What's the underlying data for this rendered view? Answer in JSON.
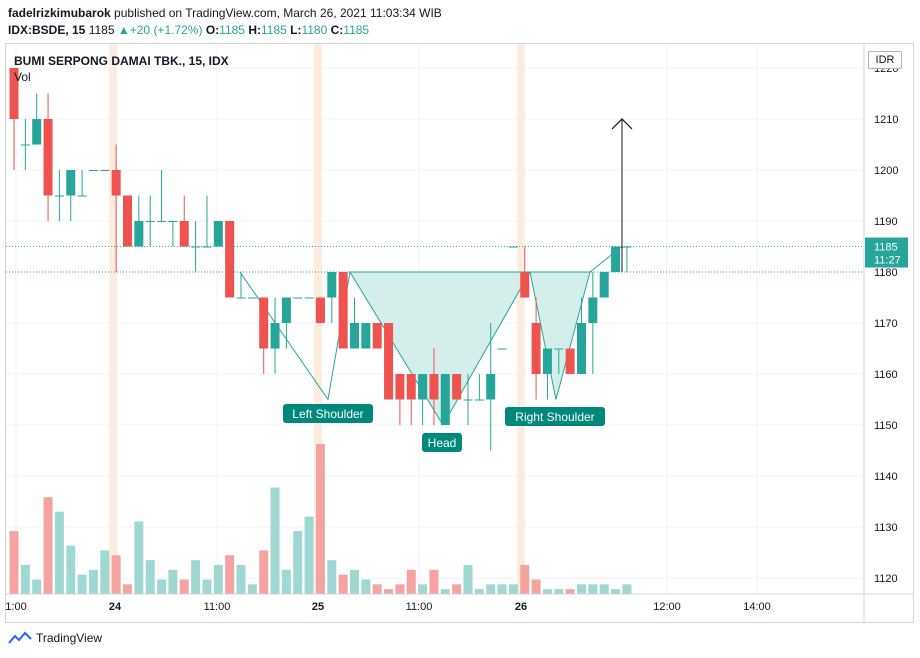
{
  "header": {
    "author": "fadelrizkimubarok",
    "published": "published on TradingView.com, March 26, 2021 11:03:34 WIB",
    "symbol": "IDX:BSDE, 15",
    "last": "1185",
    "change": "+20 (+1.72%)",
    "o_label": "O:",
    "o_value": "1185",
    "h_label": "H:",
    "h_value": "1185",
    "l_label": "L:",
    "l_value": "1180",
    "c_label": "C:",
    "c_value": "1185"
  },
  "chart_title": "BUMI SERPONG DAMAI TBK., 15, IDX",
  "vol_label": "Vol",
  "currency": "IDR",
  "price_badge": {
    "price": "1185",
    "countdown": "11:27"
  },
  "footer_brand": "TradingView",
  "colors": {
    "up": "#26a69a",
    "down": "#ef5350",
    "up_vol": "#9fd8d2",
    "down_vol": "#f5a3a1",
    "pattern_fill": "#cdebe7",
    "session": "#fde9d8"
  },
  "chart_data": {
    "type": "candlestick",
    "y_ticks": [
      1120,
      1130,
      1140,
      1150,
      1160,
      1170,
      1180,
      1190,
      1200,
      1210,
      1220
    ],
    "x_ticks": [
      "1:00",
      "24",
      "11:00",
      "25",
      "11:00",
      "26",
      "12:00",
      "14:00"
    ],
    "price_lines": [
      1185,
      1180
    ],
    "candles": [
      {
        "o": 1220,
        "h": 1220,
        "l": 1200,
        "c": 1210
      },
      {
        "o": 1205,
        "h": 1210,
        "l": 1200,
        "c": 1205
      },
      {
        "o": 1205,
        "h": 1215,
        "l": 1205,
        "c": 1210
      },
      {
        "o": 1210,
        "h": 1215,
        "l": 1190,
        "c": 1195
      },
      {
        "o": 1195,
        "h": 1200,
        "l": 1190,
        "c": 1195
      },
      {
        "o": 1195,
        "h": 1200,
        "l": 1190,
        "c": 1200
      },
      {
        "o": 1195,
        "h": 1200,
        "l": 1195,
        "c": 1195
      },
      {
        "o": 1200,
        "h": 1200,
        "l": 1200,
        "c": 1200
      },
      {
        "o": 1200,
        "h": 1200,
        "l": 1200,
        "c": 1200
      },
      {
        "o": 1200,
        "h": 1205,
        "l": 1180,
        "c": 1195
      },
      {
        "o": 1195,
        "h": 1195,
        "l": 1185,
        "c": 1185
      },
      {
        "o": 1185,
        "h": 1195,
        "l": 1185,
        "c": 1190
      },
      {
        "o": 1190,
        "h": 1195,
        "l": 1185,
        "c": 1190
      },
      {
        "o": 1190,
        "h": 1200,
        "l": 1190,
        "c": 1190
      },
      {
        "o": 1190,
        "h": 1190,
        "l": 1185,
        "c": 1190
      },
      {
        "o": 1190,
        "h": 1195,
        "l": 1185,
        "c": 1185
      },
      {
        "o": 1185,
        "h": 1190,
        "l": 1180,
        "c": 1185
      },
      {
        "o": 1185,
        "h": 1195,
        "l": 1185,
        "c": 1185
      },
      {
        "o": 1185,
        "h": 1190,
        "l": 1185,
        "c": 1190
      },
      {
        "o": 1190,
        "h": 1190,
        "l": 1175,
        "c": 1175
      },
      {
        "o": 1175,
        "h": 1180,
        "l": 1175,
        "c": 1175
      },
      {
        "o": 1175,
        "h": 1175,
        "l": 1175,
        "c": 1175
      },
      {
        "o": 1175,
        "h": 1175,
        "l": 1160,
        "c": 1165
      },
      {
        "o": 1165,
        "h": 1175,
        "l": 1160,
        "c": 1170
      },
      {
        "o": 1170,
        "h": 1175,
        "l": 1165,
        "c": 1175
      },
      {
        "o": 1175,
        "h": 1175,
        "l": 1175,
        "c": 1175
      },
      {
        "o": 1175,
        "h": 1175,
        "l": 1175,
        "c": 1175
      },
      {
        "o": 1175,
        "h": 1175,
        "l": 1170,
        "c": 1170
      },
      {
        "o": 1175,
        "h": 1180,
        "l": 1170,
        "c": 1180
      },
      {
        "o": 1180,
        "h": 1180,
        "l": 1165,
        "c": 1165
      },
      {
        "o": 1165,
        "h": 1175,
        "l": 1165,
        "c": 1170
      },
      {
        "o": 1165,
        "h": 1170,
        "l": 1165,
        "c": 1170
      },
      {
        "o": 1170,
        "h": 1170,
        "l": 1165,
        "c": 1165
      },
      {
        "o": 1170,
        "h": 1170,
        "l": 1155,
        "c": 1155
      },
      {
        "o": 1160,
        "h": 1160,
        "l": 1150,
        "c": 1155
      },
      {
        "o": 1160,
        "h": 1160,
        "l": 1150,
        "c": 1155
      },
      {
        "o": 1155,
        "h": 1160,
        "l": 1150,
        "c": 1160
      },
      {
        "o": 1160,
        "h": 1165,
        "l": 1150,
        "c": 1155
      },
      {
        "o": 1150,
        "h": 1160,
        "l": 1150,
        "c": 1160
      },
      {
        "o": 1160,
        "h": 1160,
        "l": 1155,
        "c": 1155
      },
      {
        "o": 1155,
        "h": 1160,
        "l": 1150,
        "c": 1155
      },
      {
        "o": 1155,
        "h": 1160,
        "l": 1155,
        "c": 1155
      },
      {
        "o": 1155,
        "h": 1170,
        "l": 1145,
        "c": 1160
      },
      {
        "o": 1165,
        "h": 1165,
        "l": 1165,
        "c": 1165
      },
      {
        "o": 1185,
        "h": 1185,
        "l": 1185,
        "c": 1185
      },
      {
        "o": 1180,
        "h": 1185,
        "l": 1175,
        "c": 1175
      },
      {
        "o": 1170,
        "h": 1175,
        "l": 1155,
        "c": 1160
      },
      {
        "o": 1160,
        "h": 1165,
        "l": 1155,
        "c": 1165
      },
      {
        "o": 1165,
        "h": 1165,
        "l": 1160,
        "c": 1165
      },
      {
        "o": 1165,
        "h": 1165,
        "l": 1160,
        "c": 1160
      },
      {
        "o": 1160,
        "h": 1175,
        "l": 1160,
        "c": 1170
      },
      {
        "o": 1170,
        "h": 1180,
        "l": 1160,
        "c": 1175
      },
      {
        "o": 1175,
        "h": 1180,
        "l": 1175,
        "c": 1180
      },
      {
        "o": 1180,
        "h": 1185,
        "l": 1180,
        "c": 1185
      },
      {
        "o": 1185,
        "h": 1185,
        "l": 1180,
        "c": 1185
      }
    ],
    "volumes": [
      13,
      6,
      3,
      20,
      17,
      10,
      4,
      5,
      9,
      8,
      2,
      15,
      7,
      3,
      5,
      3,
      7,
      3,
      6,
      8,
      6,
      2,
      9,
      22,
      5,
      13,
      16,
      31,
      7,
      4,
      5,
      3,
      2,
      1,
      2,
      5,
      2,
      5,
      1,
      2,
      6,
      1,
      2,
      2,
      2,
      6,
      3,
      1,
      1,
      1,
      2,
      2,
      2,
      1,
      2
    ],
    "vol_max": 31,
    "annotations": [
      {
        "text": "Left Shoulder",
        "price": 1155
      },
      {
        "text": "Head",
        "price": 1150
      },
      {
        "text": "Right Shoulder",
        "price": 1155
      }
    ],
    "arrow_target": 1210
  }
}
